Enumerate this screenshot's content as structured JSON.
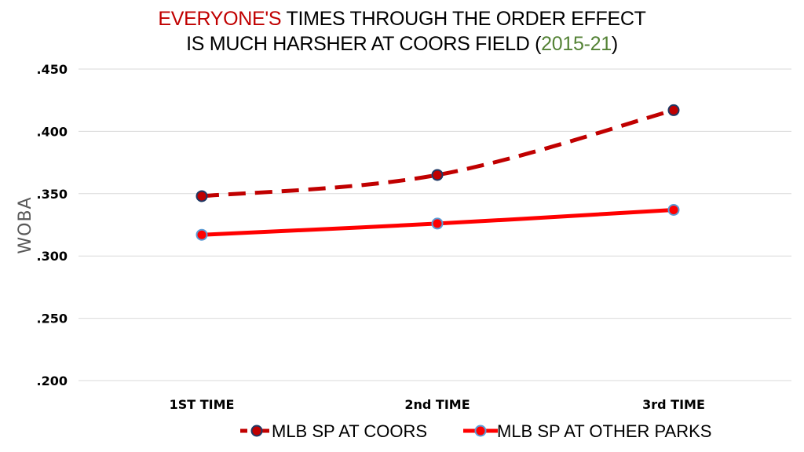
{
  "chart_data": {
    "type": "line",
    "title_parts": [
      {
        "text": "EVERYONE'S",
        "color": "#c00000"
      },
      {
        "text": " TIMES THROUGH THE ORDER EFFECT",
        "color": "#000000"
      }
    ],
    "title_line2_parts": [
      {
        "text": "IS MUCH HARSHER AT COORS FIELD (",
        "color": "#000000"
      },
      {
        "text": "2015-21",
        "color": "#548235"
      },
      {
        "text": ")",
        "color": "#000000"
      }
    ],
    "ylabel": "WOBA",
    "categories": [
      "1ST TIME",
      "2nd TIME",
      "3rd TIME"
    ],
    "ylim": [
      0.2,
      0.45
    ],
    "yticks": [
      ".450",
      ".400",
      ".350",
      ".300",
      ".250",
      ".200"
    ],
    "ytick_values": [
      0.45,
      0.4,
      0.35,
      0.3,
      0.25,
      0.2
    ],
    "grid": true,
    "legend_position": "bottom",
    "series": [
      {
        "name": "MLB SP AT COORS",
        "values": [
          0.348,
          0.365,
          0.417
        ],
        "line_color": "#c00000",
        "marker_fill": "#c00000",
        "marker_edge": "#1f3864",
        "dashed": true
      },
      {
        "name": "MLB SP AT OTHER PARKS",
        "values": [
          0.317,
          0.326,
          0.337
        ],
        "line_color": "#ff0000",
        "marker_fill": "#ff0000",
        "marker_edge": "#5b9bd5",
        "dashed": false
      }
    ]
  }
}
